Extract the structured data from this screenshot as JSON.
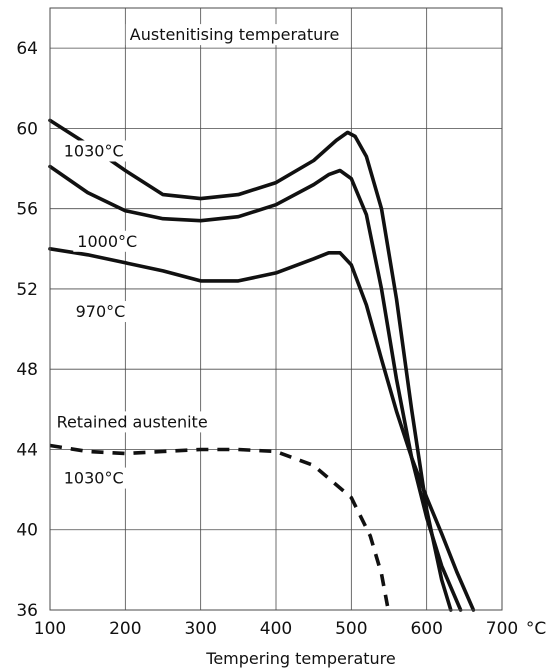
{
  "chart_data": {
    "type": "line",
    "title": "",
    "xlabel": "Tempering temperature",
    "x_unit": "°C",
    "ylabel": "",
    "xlim": [
      100,
      700
    ],
    "ylim": [
      36,
      66
    ],
    "x_ticks": [
      100,
      200,
      300,
      400,
      500,
      600,
      700
    ],
    "y_ticks": [
      36,
      40,
      44,
      48,
      52,
      56,
      60,
      64
    ],
    "grid": true,
    "annotations": [
      {
        "text": "Austenitising temperature",
        "x": 345,
        "y": 64.4
      },
      {
        "text": "1030°C",
        "x": 158,
        "y": 58.6
      },
      {
        "text": "1000°C",
        "x": 176,
        "y": 54.1
      },
      {
        "text": "970°C",
        "x": 167,
        "y": 50.6
      },
      {
        "text": "Retained austenite",
        "x": 209,
        "y": 45.1
      },
      {
        "text": "1030°C",
        "x": 158,
        "y": 42.3
      }
    ],
    "series": [
      {
        "style": "solid",
        "x": [
          100,
          150,
          200,
          250,
          300,
          350,
          400,
          450,
          480,
          495,
          505,
          520,
          540,
          560,
          580,
          600,
          620,
          632
        ],
        "y": [
          60.4,
          59.2,
          57.9,
          56.7,
          56.5,
          56.7,
          57.3,
          58.4,
          59.4,
          59.8,
          59.6,
          58.6,
          56.0,
          51.5,
          46.0,
          41.0,
          37.5,
          36.0
        ]
      },
      {
        "style": "solid",
        "x": [
          100,
          150,
          200,
          250,
          300,
          350,
          400,
          450,
          470,
          485,
          500,
          520,
          540,
          560,
          580,
          600,
          620,
          645
        ],
        "y": [
          58.1,
          56.8,
          55.9,
          55.5,
          55.4,
          55.6,
          56.2,
          57.2,
          57.7,
          57.9,
          57.5,
          55.7,
          52.0,
          47.5,
          43.6,
          40.6,
          38.2,
          36.0
        ]
      },
      {
        "style": "solid",
        "x": [
          100,
          150,
          200,
          250,
          300,
          350,
          400,
          450,
          470,
          485,
          500,
          520,
          540,
          560,
          580,
          600,
          620,
          640,
          662
        ],
        "y": [
          54.0,
          53.7,
          53.3,
          52.9,
          52.4,
          52.4,
          52.8,
          53.5,
          53.8,
          53.8,
          53.2,
          51.2,
          48.5,
          45.9,
          43.6,
          41.6,
          39.8,
          37.9,
          36.0
        ]
      },
      {
        "style": "dashed",
        "x": [
          100,
          150,
          200,
          250,
          300,
          350,
          400,
          450,
          500,
          525,
          540,
          548
        ],
        "y": [
          44.2,
          43.9,
          43.8,
          43.9,
          44.0,
          44.0,
          43.9,
          43.2,
          41.6,
          39.7,
          37.8,
          36.2
        ]
      }
    ]
  }
}
